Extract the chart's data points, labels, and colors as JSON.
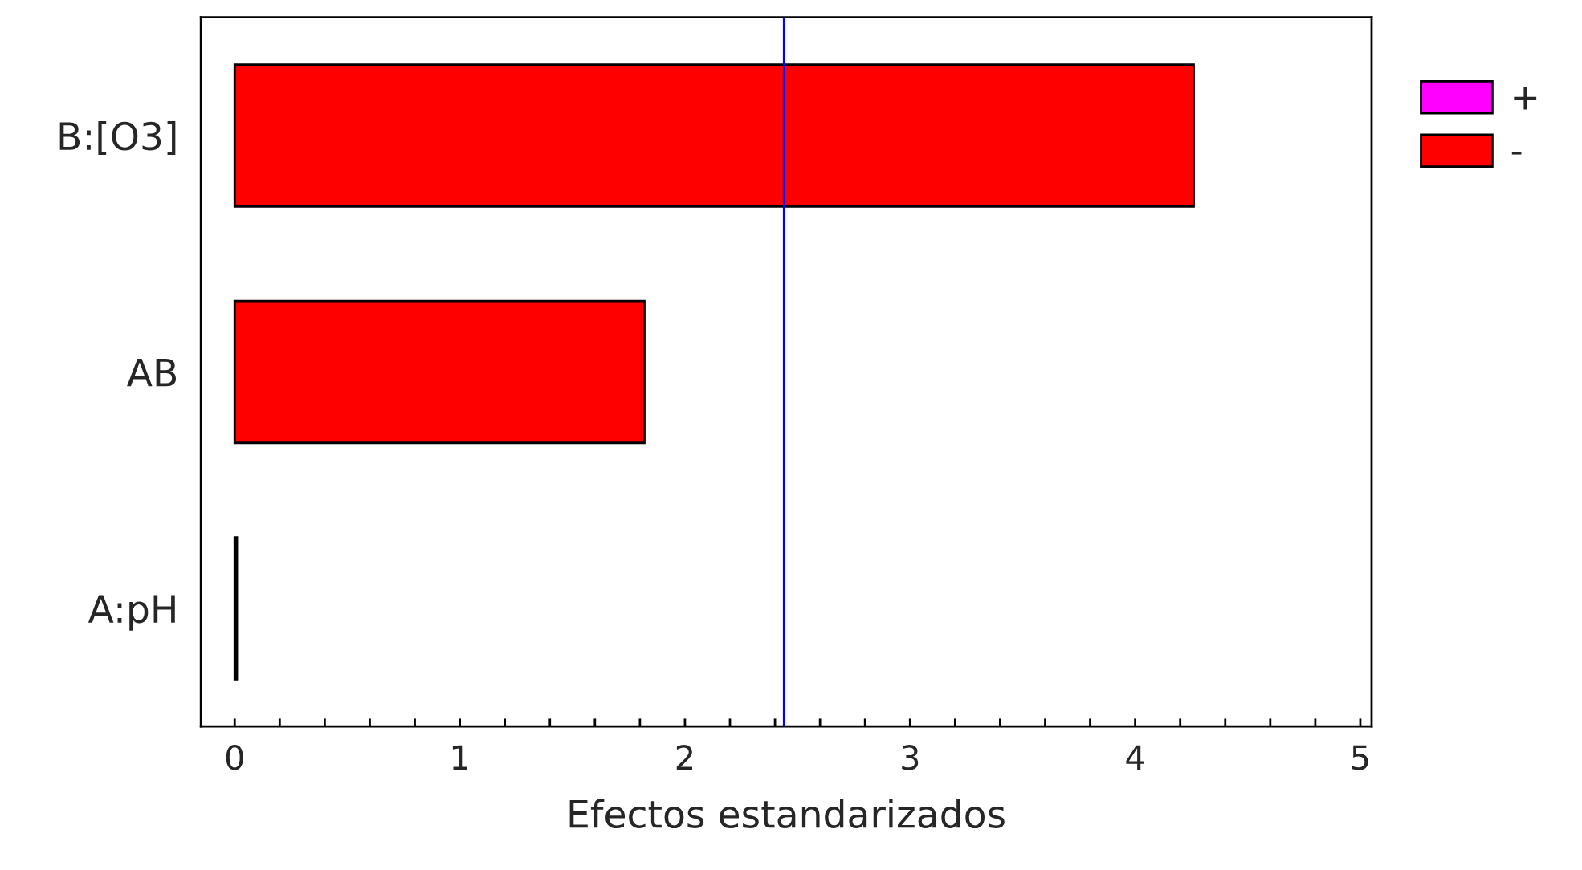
{
  "chart_data": {
    "type": "bar",
    "orientation": "horizontal",
    "xlabel": "Efectos estandarizados",
    "categories": [
      "B:[O3]",
      "AB",
      "A:pH"
    ],
    "series": [
      {
        "name": "+",
        "color": "#ff00ff",
        "values": [
          null,
          null,
          null
        ]
      },
      {
        "name": "-",
        "color": "#ff0000",
        "values": [
          4.26,
          1.82,
          0.01
        ]
      }
    ],
    "xlim": [
      -0.15,
      5.05
    ],
    "xticks": [
      0,
      {
        "value": 0.2,
        "label": null
      },
      {
        "value": 0.4,
        "label": null
      },
      {
        "value": 0.6,
        "label": null
      },
      {
        "value": 0.8,
        "label": null
      },
      1,
      {
        "value": 1.2,
        "label": null
      },
      {
        "value": 1.4,
        "label": null
      },
      {
        "value": 1.6,
        "label": null
      },
      {
        "value": 1.8,
        "label": null
      },
      2,
      {
        "value": 2.2,
        "label": null
      },
      {
        "value": 2.4,
        "label": null
      },
      {
        "value": 2.6,
        "label": null
      },
      {
        "value": 2.8,
        "label": null
      },
      3,
      {
        "value": 3.2,
        "label": null
      },
      {
        "value": 3.4,
        "label": null
      },
      {
        "value": 3.6,
        "label": null
      },
      {
        "value": 3.8,
        "label": null
      },
      4,
      {
        "value": 4.2,
        "label": null
      },
      {
        "value": 4.4,
        "label": null
      },
      {
        "value": 4.6,
        "label": null
      },
      {
        "value": 4.8,
        "label": null
      },
      5
    ],
    "ref_lines": [
      {
        "axis": "x",
        "value": 2.44,
        "color": "#0000ff"
      }
    ],
    "grid": false,
    "legend": "top right"
  }
}
